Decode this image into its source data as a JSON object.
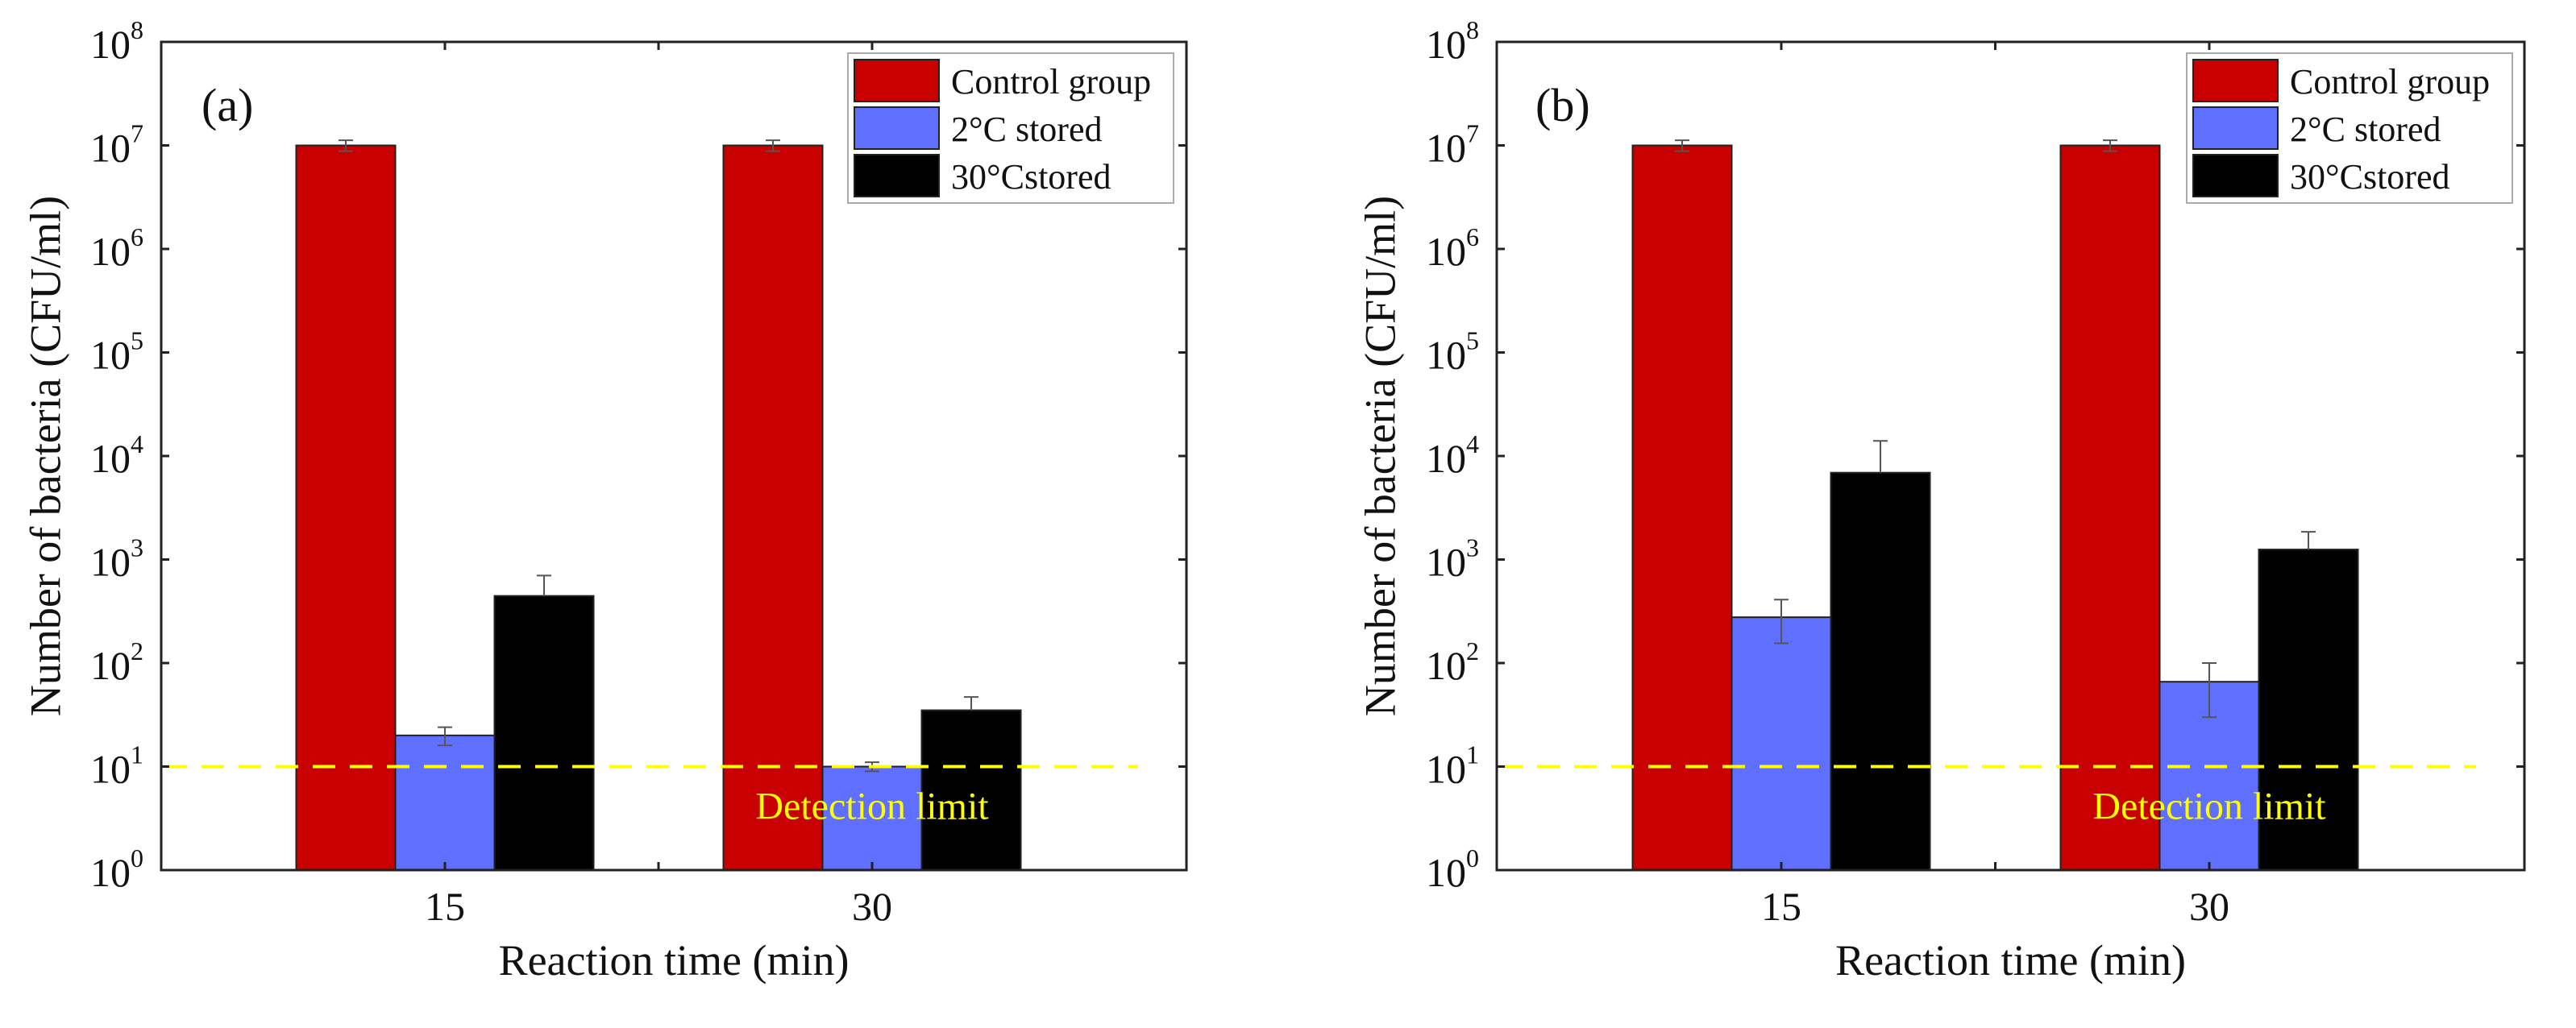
{
  "chart_data": [
    {
      "type": "bar",
      "panel_label": "(a)",
      "xlabel": "Reaction time (min)",
      "ylabel": "Number of bacteria (CFU/ml)",
      "yscale": "log",
      "ylim": [
        1,
        100000000
      ],
      "ytick_base": "10",
      "ytick_exponents": [
        "0",
        "1",
        "2",
        "3",
        "4",
        "5",
        "6",
        "7",
        "8"
      ],
      "categories": [
        "15",
        "30"
      ],
      "legend_position": "top-right",
      "series": [
        {
          "name": "Control group",
          "color": "#c80000",
          "values": [
            10000000,
            10000000
          ],
          "err_low": [
            8800000,
            8800000
          ],
          "err_high": [
            11200000,
            11200000
          ]
        },
        {
          "name": "2°C stored",
          "color": "#5f6fff",
          "values": [
            20,
            10
          ],
          "err_low": [
            16,
            9
          ],
          "err_high": [
            24,
            11
          ]
        },
        {
          "name": "30°Cstored",
          "color": "#000000",
          "values": [
            445,
            35
          ],
          "err_low": [
            445,
            35
          ],
          "err_high": [
            700,
            47
          ]
        }
      ],
      "reference_line": {
        "value": 10,
        "label": "Detection limit",
        "color": "#ffff00"
      }
    },
    {
      "type": "bar",
      "panel_label": "(b)",
      "xlabel": "Reaction time (min)",
      "ylabel": "Number of bacteria (CFU/ml)",
      "yscale": "log",
      "ylim": [
        1,
        100000000
      ],
      "ytick_base": "10",
      "ytick_exponents": [
        "0",
        "1",
        "2",
        "3",
        "4",
        "5",
        "6",
        "7",
        "8"
      ],
      "categories": [
        "15",
        "30"
      ],
      "legend_position": "top-right",
      "series": [
        {
          "name": "Control group",
          "color": "#c80000",
          "values": [
            10000000,
            10000000
          ],
          "err_low": [
            8800000,
            8800000
          ],
          "err_high": [
            11200000,
            11200000
          ]
        },
        {
          "name": "2°C stored",
          "color": "#5f6fff",
          "values": [
            277,
            66
          ],
          "err_low": [
            155,
            30
          ],
          "err_high": [
            410,
            100
          ]
        },
        {
          "name": "30°Cstored",
          "color": "#000000",
          "values": [
            6900,
            1250
          ],
          "err_low": [
            6900,
            1250
          ],
          "err_high": [
            14000,
            1850
          ]
        }
      ],
      "reference_line": {
        "value": 10,
        "label": "Detection limit",
        "color": "#ffff00"
      }
    }
  ]
}
